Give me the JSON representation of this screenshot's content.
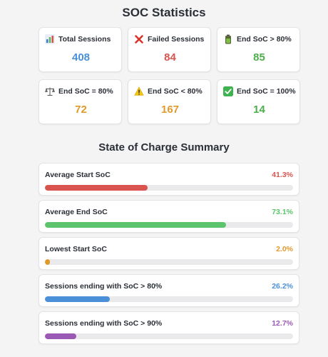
{
  "header": {
    "title": "SOC Statistics"
  },
  "stats": [
    {
      "label": "Total Sessions",
      "value": "408",
      "icon": "bar-chart-icon",
      "color": "#4a90d9"
    },
    {
      "label": "Failed Sessions",
      "value": "84",
      "icon": "cross-icon",
      "color": "#d9534f"
    },
    {
      "label": "End SoC > 80%",
      "value": "85",
      "icon": "battery-icon",
      "color": "#4cae4c"
    },
    {
      "label": "End SoC = 80%",
      "value": "72",
      "icon": "scales-icon",
      "color": "#e09a2c"
    },
    {
      "label": "End SoC < 80%",
      "value": "167",
      "icon": "warning-icon",
      "color": "#e09a2c"
    },
    {
      "label": "End SoC = 100%",
      "value": "14",
      "icon": "check-icon",
      "color": "#4cae4c"
    }
  ],
  "summary": {
    "title": "State of Charge Summary",
    "items": [
      {
        "label": "Average Start SoC",
        "value": "41.3%",
        "percent": 41.3,
        "color": "#d9534f"
      },
      {
        "label": "Average End SoC",
        "value": "73.1%",
        "percent": 73.1,
        "color": "#5cc46c"
      },
      {
        "label": "Lowest Start SoC",
        "value": "2.0%",
        "percent": 2.0,
        "color": "#e09a2c"
      },
      {
        "label": "Sessions ending with SoC > 80%",
        "value": "26.2%",
        "percent": 26.2,
        "color": "#4a90d9"
      },
      {
        "label": "Sessions ending with SoC > 90%",
        "value": "12.7%",
        "percent": 12.7,
        "color": "#9b59b6"
      }
    ]
  }
}
